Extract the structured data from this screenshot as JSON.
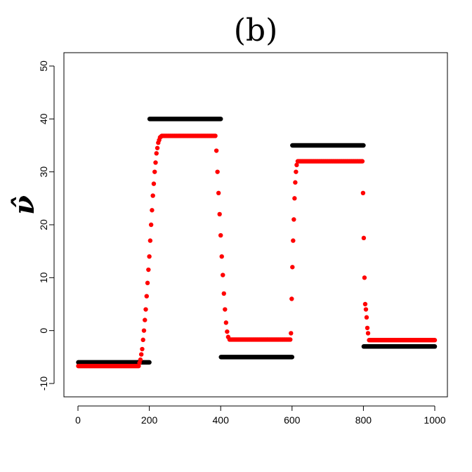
{
  "chart_data": {
    "type": "scatter",
    "title": "(b)",
    "xlabel": "",
    "ylabel": "ν̂",
    "xlim": [
      0,
      1000
    ],
    "ylim": [
      -10,
      50
    ],
    "xticks": [
      "0",
      "200",
      "400",
      "600",
      "800",
      "1000"
    ],
    "yticks": [
      "-10",
      "0",
      "10",
      "20",
      "30",
      "40",
      "50"
    ],
    "xtick_values": [
      0,
      200,
      400,
      600,
      800,
      1000
    ],
    "ytick_values": [
      -10,
      0,
      10,
      20,
      30,
      40,
      50
    ],
    "grid": false,
    "series": [
      {
        "color": "#000000",
        "segments": [
          {
            "x_start": 1,
            "x_end": 200,
            "y": -6
          },
          {
            "x_start": 201,
            "x_end": 400,
            "y": 40
          },
          {
            "x_start": 401,
            "x_end": 600,
            "y": -5
          },
          {
            "x_start": 601,
            "x_end": 800,
            "y": 35
          },
          {
            "x_start": 801,
            "x_end": 1000,
            "y": -3
          }
        ]
      },
      {
        "color": "#ff0000",
        "points": [
          [
            1,
            -6.7
          ],
          [
            100,
            -6.7
          ],
          [
            170,
            -6.7
          ],
          [
            175,
            -5.5
          ],
          [
            180,
            -3.5
          ],
          [
            185,
            0
          ],
          [
            190,
            4
          ],
          [
            195,
            9
          ],
          [
            200,
            14
          ],
          [
            205,
            20
          ],
          [
            210,
            25.5
          ],
          [
            215,
            30
          ],
          [
            220,
            33.5
          ],
          [
            225,
            35.5
          ],
          [
            230,
            36.5
          ],
          [
            235,
            36.8
          ],
          [
            300,
            36.8
          ],
          [
            385,
            36.8
          ],
          [
            388,
            34
          ],
          [
            391,
            30
          ],
          [
            394,
            26
          ],
          [
            397,
            22
          ],
          [
            400,
            18
          ],
          [
            403,
            14
          ],
          [
            406,
            10.5
          ],
          [
            409,
            7
          ],
          [
            412,
            4
          ],
          [
            415,
            1.5
          ],
          [
            418,
            -0.2
          ],
          [
            421,
            -1.2
          ],
          [
            425,
            -1.7
          ],
          [
            500,
            -1.7
          ],
          [
            595,
            -1.7
          ],
          [
            597,
            -0.5
          ],
          [
            599,
            6
          ],
          [
            601,
            12
          ],
          [
            603,
            17
          ],
          [
            605,
            21
          ],
          [
            607,
            25
          ],
          [
            609,
            28
          ],
          [
            611,
            30
          ],
          [
            613,
            31.3
          ],
          [
            616,
            32
          ],
          [
            700,
            32
          ],
          [
            797,
            32
          ],
          [
            799,
            26
          ],
          [
            801,
            17.5
          ],
          [
            803,
            10
          ],
          [
            805,
            5
          ],
          [
            807,
            4
          ],
          [
            809,
            2.5
          ],
          [
            811,
            0.5
          ],
          [
            813,
            -0.5
          ],
          [
            816,
            -1.8
          ],
          [
            900,
            -1.8
          ],
          [
            1000,
            -1.8
          ]
        ]
      }
    ]
  }
}
